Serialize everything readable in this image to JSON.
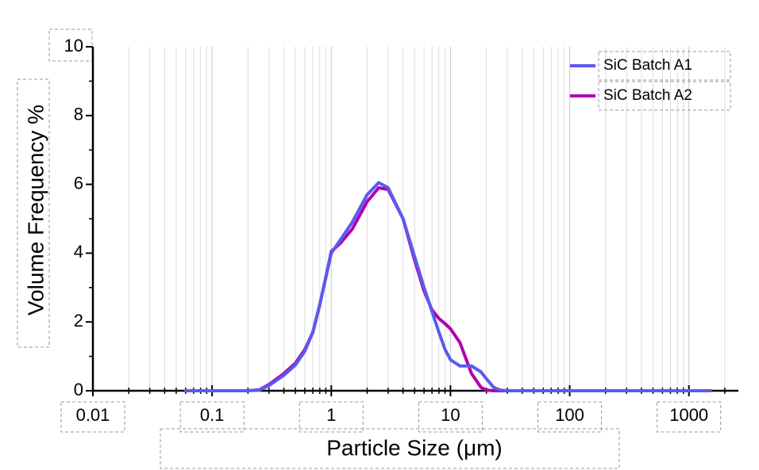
{
  "chart_data": {
    "type": "line",
    "x_label": "Particle Size (μm)",
    "y_label": "Volume Frequency %",
    "x": [
      0.06,
      0.1,
      0.2,
      0.25,
      0.3,
      0.4,
      0.5,
      0.6,
      0.7,
      0.8,
      0.9,
      1.0,
      1.2,
      1.5,
      2.0,
      2.5,
      3.0,
      4.0,
      5.0,
      6.0,
      7.0,
      8.0,
      9.0,
      10,
      12,
      15,
      18,
      20,
      23,
      26,
      30,
      100,
      1000,
      1500
    ],
    "series": [
      {
        "name": "SiC Batch A1",
        "color": "#5a5af0",
        "values": [
          0,
          0,
          0,
          0.02,
          0.15,
          0.45,
          0.75,
          1.15,
          1.7,
          2.5,
          3.3,
          4.0,
          4.4,
          4.9,
          5.7,
          6.05,
          5.9,
          5.0,
          3.9,
          3.0,
          2.3,
          1.7,
          1.2,
          0.9,
          0.72,
          0.72,
          0.55,
          0.35,
          0.1,
          0.02,
          0,
          0,
          0,
          0
        ]
      },
      {
        "name": "SiC Batch A2",
        "color": "#b000b0",
        "values": [
          0,
          0,
          0,
          0.03,
          0.18,
          0.5,
          0.8,
          1.2,
          1.7,
          2.5,
          3.3,
          4.05,
          4.3,
          4.7,
          5.5,
          5.9,
          5.85,
          5.0,
          3.8,
          2.9,
          2.35,
          2.1,
          1.95,
          1.8,
          1.4,
          0.5,
          0.1,
          0.02,
          0,
          0,
          0,
          0,
          0,
          0
        ]
      }
    ],
    "x_log": true,
    "xlim": [
      0.01,
      2600
    ],
    "xticks": [
      0.01,
      0.1,
      1,
      10,
      100,
      1000
    ],
    "ylim": [
      0,
      10
    ],
    "yticks": [
      0,
      2,
      4,
      6,
      8,
      10
    ],
    "grid": true,
    "legend": "top-right"
  }
}
